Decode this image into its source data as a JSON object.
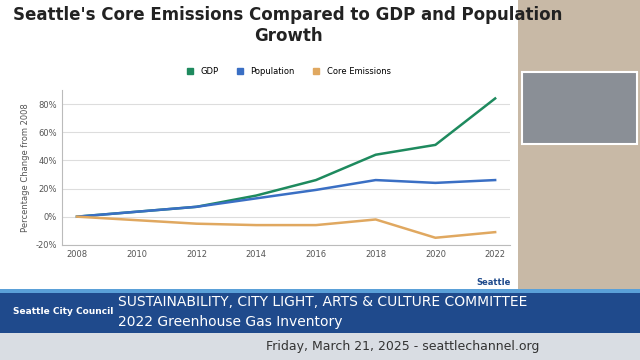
{
  "chart_data": {
    "type": "line",
    "title": "Seattle's Core Emissions Compared to GDP and Population Growth",
    "y_label": "Percentage Change from 2008",
    "x": [
      2008,
      2012,
      2014,
      2016,
      2018,
      2020,
      2022
    ],
    "series": [
      {
        "name": "GDP",
        "color": "#1e8a5e",
        "values": [
          0,
          7,
          15,
          26,
          44,
          51,
          84
        ]
      },
      {
        "name": "Population",
        "color": "#3a6fc4",
        "values": [
          0,
          7,
          13,
          19,
          26,
          24,
          26
        ]
      },
      {
        "name": "Core Emissions",
        "color": "#e0a860",
        "values": [
          0,
          -5,
          -6,
          -6,
          -2,
          -15,
          -11
        ]
      }
    ],
    "xlim": [
      2007.5,
      2022.5
    ],
    "xticks": [
      2008,
      2010,
      2012,
      2014,
      2016,
      2018,
      2020,
      2022
    ],
    "ylim": [
      -20,
      90
    ],
    "yticks": [
      {
        "value": -20,
        "label": "-20%"
      },
      {
        "value": 0,
        "label": "0%"
      },
      {
        "value": 20,
        "label": "20%"
      },
      {
        "value": 40,
        "label": "40%"
      },
      {
        "value": 60,
        "label": "60%"
      },
      {
        "value": 80,
        "label": "80%"
      }
    ],
    "grid": true,
    "legend": "upper center",
    "annotations": [
      "Seattle",
      "Seattle City Council",
      "SUSTAINABILITY, CITY LIGHT, ARTS & CULTURE COMMITTEE",
      "2022 Greenhouse Gas Inventory",
      "Friday, March 21, 2025 - seattlechannel.org"
    ]
  }
}
